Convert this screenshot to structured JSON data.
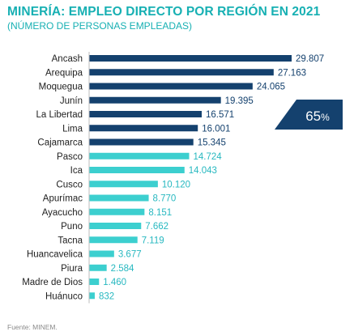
{
  "header": {
    "title": "MINERÍA: EMPLEO DIRECTO POR REGIÓN EN 2021",
    "subtitle": "(NÚMERO DE PERSONAS EMPLEADAS)"
  },
  "source": "Fuente: MINEM.",
  "colors": {
    "dark_bar": "#14416e",
    "light_bar": "#3ccfcf",
    "dark_label": "#14416e",
    "light_label": "#27b8c0",
    "title": "#17b0b3",
    "badge": "#14416e"
  },
  "chart_data": {
    "type": "bar",
    "orientation": "horizontal",
    "categories": [
      "Ancash",
      "Arequipa",
      "Moquegua",
      "Junín",
      "La Libertad",
      "Lima",
      "Cajamarca",
      "Pasco",
      "Ica",
      "Cusco",
      "Apurímac",
      "Ayacucho",
      "Puno",
      "Tacna",
      "Huancavelica",
      "Piura",
      "Madre de Dios",
      "Huánuco"
    ],
    "values": [
      29807,
      27163,
      24065,
      19395,
      16571,
      16001,
      15345,
      14724,
      14043,
      10120,
      8770,
      8151,
      7662,
      7119,
      3677,
      2584,
      1460,
      832
    ],
    "value_labels": [
      "29.807",
      "27.163",
      "24.065",
      "19.395",
      "16.571",
      "16.001",
      "15.345",
      "14.724",
      "14.043",
      "10.120",
      "8.770",
      "8.151",
      "7.662",
      "7.119",
      "3.677",
      "2.584",
      "1.460",
      "832"
    ],
    "highlight_count": 7,
    "highlight_label": "65%",
    "grid": false,
    "legend": false
  }
}
